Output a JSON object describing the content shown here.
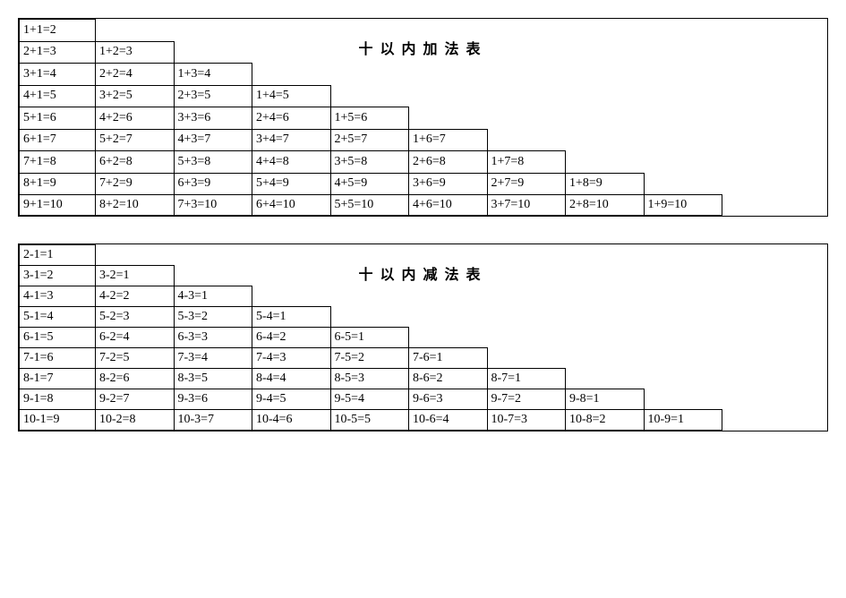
{
  "addition": {
    "title": "十以内加法表",
    "type": "table",
    "columns": 9,
    "rows": 9,
    "cell_border_color": "#000000",
    "background_color": "#ffffff",
    "font_size": 14,
    "title_font_size": 16,
    "title_font_weight": "bold",
    "data": [
      [
        "1+1=2"
      ],
      [
        "2+1=3",
        "1+2=3"
      ],
      [
        "3+1=4",
        "2+2=4",
        "1+3=4"
      ],
      [
        "4+1=5",
        "3+2=5",
        "2+3=5",
        "1+4=5"
      ],
      [
        "5+1=6",
        "4+2=6",
        "3+3=6",
        "2+4=6",
        "1+5=6"
      ],
      [
        "6+1=7",
        "5+2=7",
        "4+3=7",
        "3+4=7",
        "2+5=7",
        "1+6=7"
      ],
      [
        "7+1=8",
        "6+2=8",
        "5+3=8",
        "4+4=8",
        "3+5=8",
        "2+6=8",
        "1+7=8"
      ],
      [
        "8+1=9",
        "7+2=9",
        "6+3=9",
        "5+4=9",
        "4+5=9",
        "3+6=9",
        "2+7=9",
        "1+8=9"
      ],
      [
        "9+1=10",
        "8+2=10",
        "7+3=10",
        "6+4=10",
        "5+5=10",
        "4+6=10",
        "3+7=10",
        "2+8=10",
        "1+9=10"
      ]
    ]
  },
  "subtraction": {
    "title": "十以内减法表",
    "type": "table",
    "columns": 9,
    "rows": 9,
    "cell_border_color": "#000000",
    "background_color": "#ffffff",
    "font_size": 14,
    "title_font_size": 16,
    "title_font_weight": "bold",
    "data": [
      [
        "2-1=1"
      ],
      [
        "3-1=2",
        "3-2=1"
      ],
      [
        "4-1=3",
        "4-2=2",
        "4-3=1"
      ],
      [
        "5-1=4",
        "5-2=3",
        "5-3=2",
        "5-4=1"
      ],
      [
        "6-1=5",
        "6-2=4",
        "6-3=3",
        "6-4=2",
        "6-5=1"
      ],
      [
        "7-1=6",
        "7-2=5",
        "7-3=4",
        "7-4=3",
        "7-5=2",
        "7-6=1"
      ],
      [
        "8-1=7",
        "8-2=6",
        "8-3=5",
        "8-4=4",
        "8-5=3",
        "8-6=2",
        "8-7=1"
      ],
      [
        "9-1=8",
        "9-2=7",
        "9-3=6",
        "9-4=5",
        "9-5=4",
        "9-6=3",
        "9-7=2",
        "9-8=1"
      ],
      [
        "10-1=9",
        "10-2=8",
        "10-3=7",
        "10-4=6",
        "10-5=5",
        "10-6=4",
        "10-7=3",
        "10-8=2",
        "10-9=1"
      ]
    ]
  }
}
